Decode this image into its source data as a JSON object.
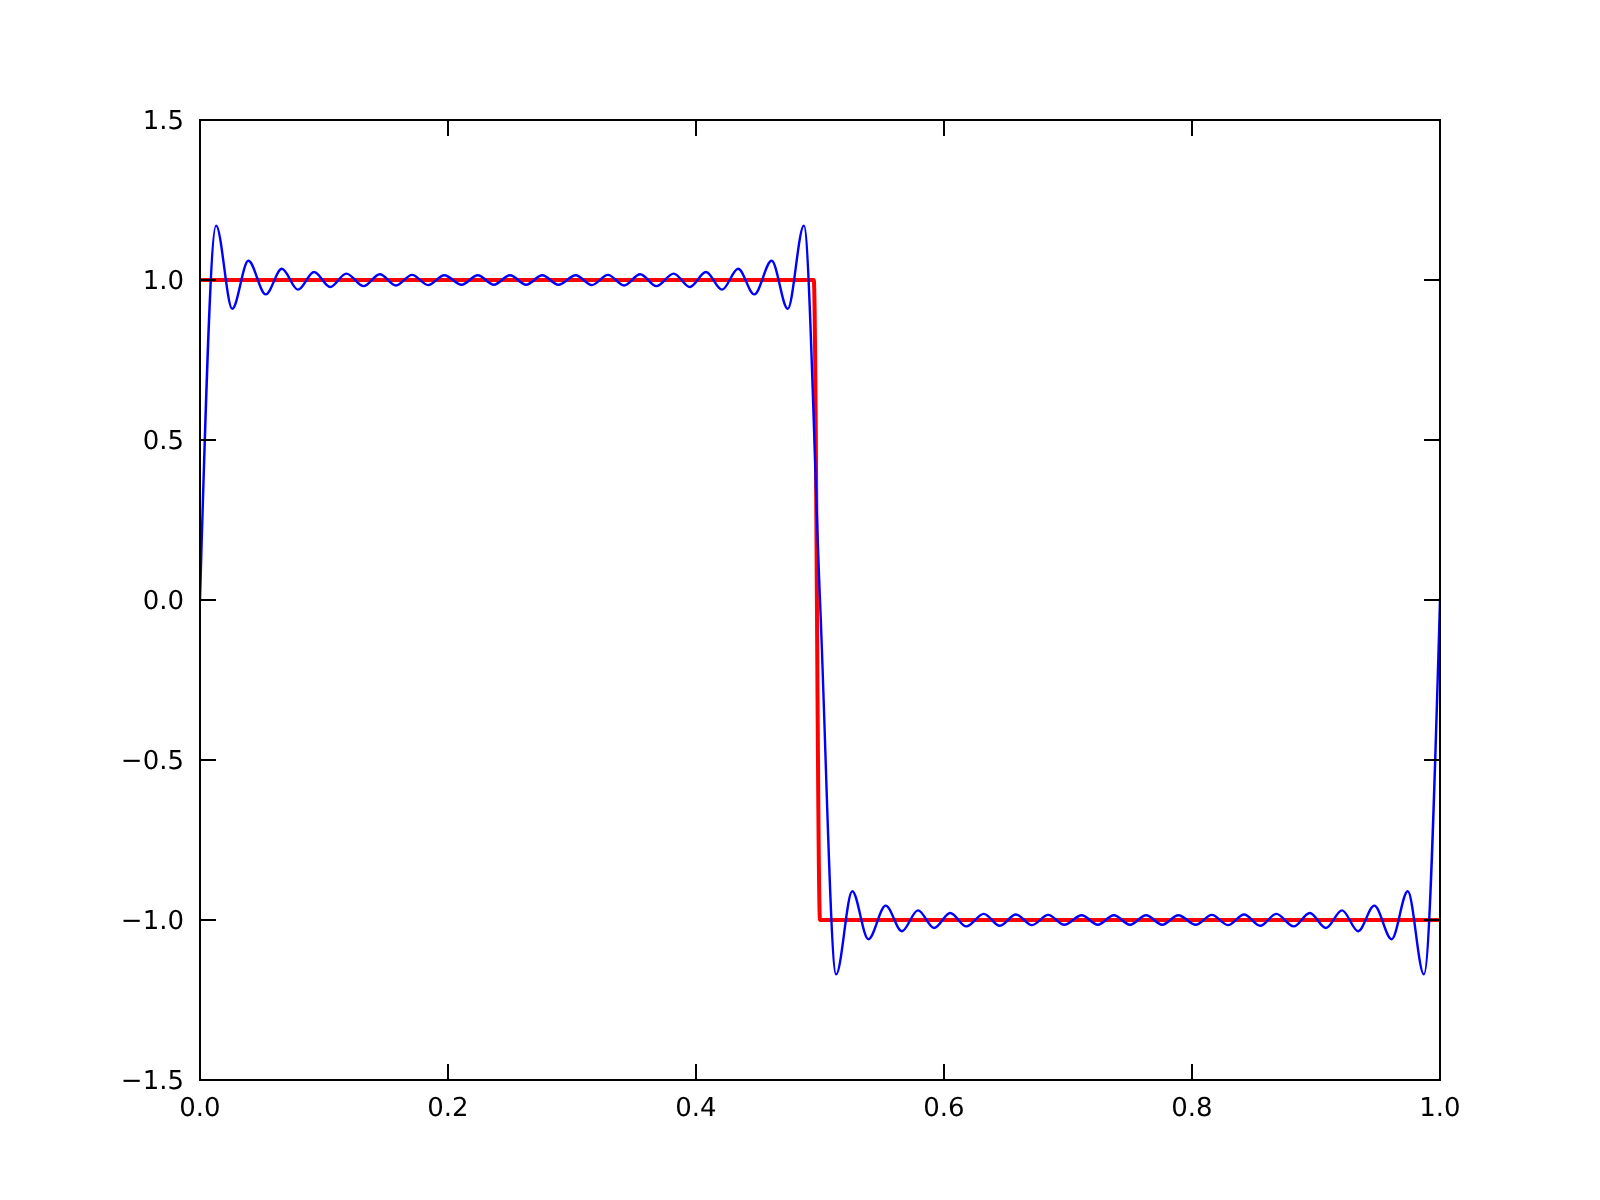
{
  "chart_data": {
    "type": "line",
    "xlim": [
      0,
      1
    ],
    "ylim": [
      -1.5,
      1.5
    ],
    "xticks": [
      {
        "value": 0,
        "label": "0.0"
      },
      {
        "value": 0.2,
        "label": "0.2"
      },
      {
        "value": 0.4,
        "label": "0.4"
      },
      {
        "value": 0.6,
        "label": "0.6"
      },
      {
        "value": 0.8,
        "label": "0.8"
      },
      {
        "value": 1,
        "label": "1.0"
      }
    ],
    "yticks": [
      {
        "value": -1.5,
        "label": "−1.5"
      },
      {
        "value": -1,
        "label": "−1.0"
      },
      {
        "value": -0.5,
        "label": "−0.5"
      },
      {
        "value": 0,
        "label": "0.0"
      },
      {
        "value": 0.5,
        "label": "0.5"
      },
      {
        "value": 1,
        "label": "1.0"
      },
      {
        "value": 1.5,
        "label": "1.5"
      }
    ],
    "grid": false,
    "marker": "none",
    "line_style": "solid",
    "series": [
      {
        "color": "#ff0000",
        "x": [
          0,
          0.495,
          0.5,
          1
        ],
        "values": [
          1,
          1,
          -1,
          -1
        ]
      },
      {
        "color": "#0000ff",
        "x": [
          0,
          0.013,
          0.026,
          0.039,
          0.053,
          0.066,
          0.079,
          0.092,
          0.105,
          0.118,
          0.132,
          0.145,
          0.158,
          0.171,
          0.184,
          0.197,
          0.211,
          0.224,
          0.237,
          0.25,
          0.263,
          0.276,
          0.289,
          0.303,
          0.316,
          0.329,
          0.342,
          0.355,
          0.368,
          0.382,
          0.395,
          0.408,
          0.421,
          0.434,
          0.447,
          0.461,
          0.474,
          0.487,
          0.5,
          0.513,
          0.526,
          0.539,
          0.553,
          0.566,
          0.579,
          0.592,
          0.605,
          0.618,
          0.632,
          0.645,
          0.658,
          0.671,
          0.684,
          0.697,
          0.711,
          0.724,
          0.737,
          0.75,
          0.763,
          0.776,
          0.789,
          0.803,
          0.816,
          0.829,
          0.842,
          0.855,
          0.868,
          0.882,
          0.895,
          0.908,
          0.921,
          0.934,
          0.947,
          0.961,
          0.974,
          0.987,
          1
        ],
        "values": [
          0,
          1.17,
          0.91,
          1.06,
          0.955,
          1.035,
          0.97,
          1.025,
          0.978,
          1.02,
          0.981,
          1.018,
          0.983,
          1.016,
          0.984,
          1.015,
          0.985,
          1.015,
          0.985,
          1.015,
          0.985,
          1.015,
          0.985,
          1.015,
          0.984,
          1.016,
          0.983,
          1.018,
          0.981,
          1.02,
          0.978,
          1.025,
          0.97,
          1.035,
          0.955,
          1.06,
          0.91,
          1.17,
          0,
          -1.17,
          -0.91,
          -1.06,
          -0.955,
          -1.035,
          -0.97,
          -1.025,
          -0.978,
          -1.02,
          -0.981,
          -1.018,
          -0.983,
          -1.016,
          -0.984,
          -1.015,
          -0.985,
          -1.015,
          -0.985,
          -1.015,
          -0.985,
          -1.015,
          -0.985,
          -1.015,
          -0.984,
          -1.016,
          -0.983,
          -1.018,
          -0.981,
          -1.02,
          -0.978,
          -1.025,
          -0.97,
          -1.035,
          -0.955,
          -1.06,
          -0.91,
          -1.17,
          0
        ]
      }
    ]
  }
}
